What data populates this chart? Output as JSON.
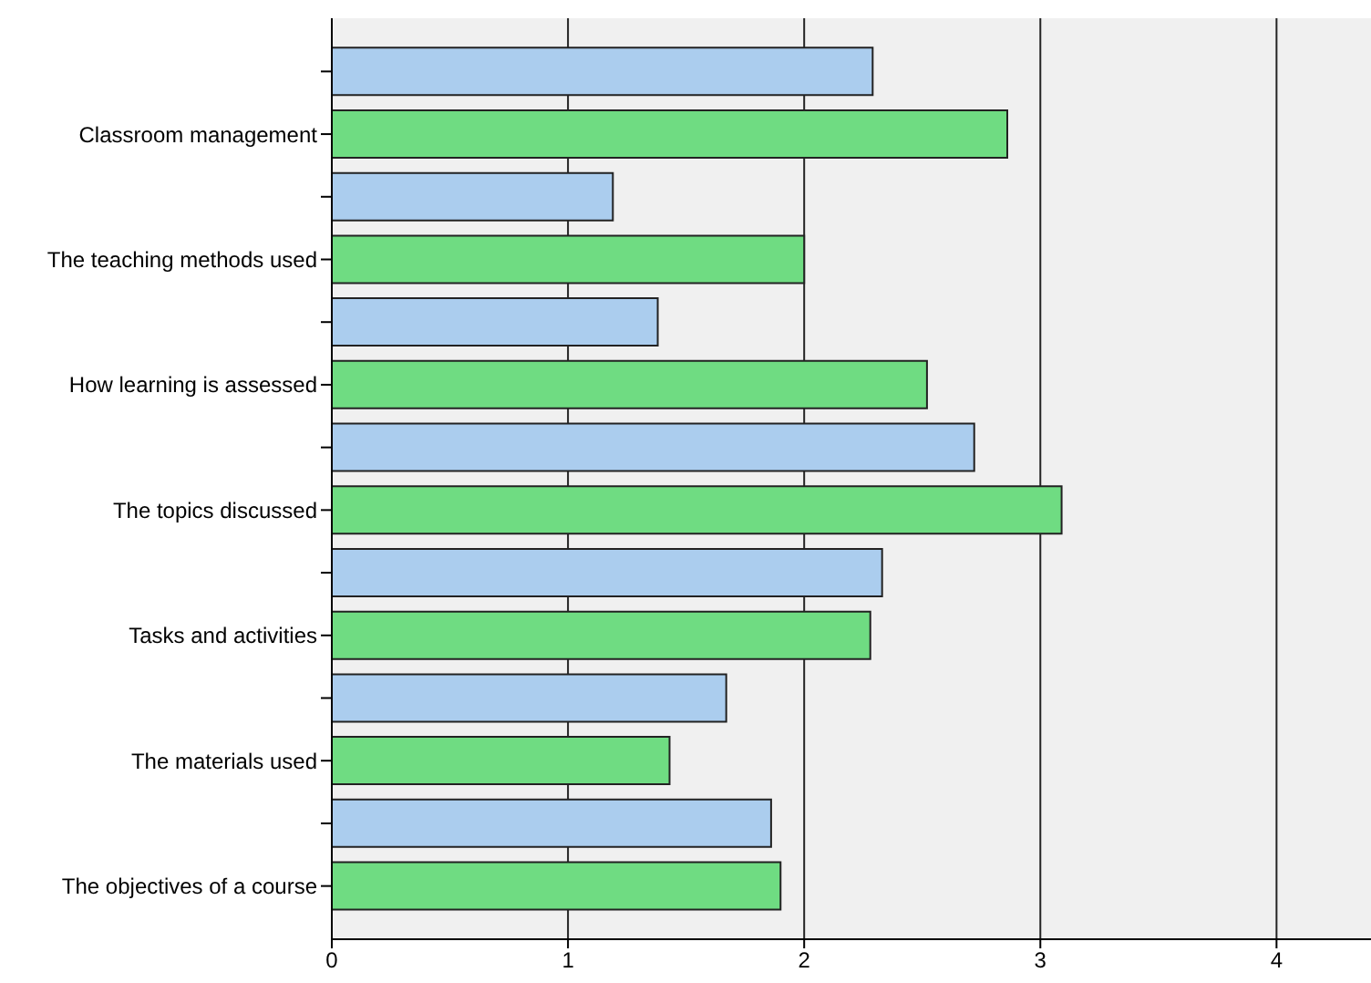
{
  "chart_data": {
    "type": "bar",
    "orientation": "horizontal",
    "categories": [
      null,
      "Classroom management",
      null,
      "The teaching methods used",
      null,
      "How learning is assessed",
      null,
      "The topics discussed",
      null,
      "Tasks and activities",
      null,
      "The materials used",
      null,
      "The objectives of a course"
    ],
    "values": [
      2.29,
      2.86,
      1.19,
      2.0,
      1.38,
      2.52,
      2.72,
      3.09,
      2.33,
      2.28,
      1.67,
      1.43,
      1.86,
      1.9
    ],
    "colors": [
      "#abcdee",
      "#6fdc82",
      "#abcdee",
      "#6fdc82",
      "#abcdee",
      "#6fdc82",
      "#abcdee",
      "#6fdc82",
      "#abcdee",
      "#6fdc82",
      "#abcdee",
      "#6fdc82",
      "#abcdee",
      "#6fdc82"
    ],
    "xlim": [
      0,
      4.4
    ],
    "xticks": [
      0,
      1,
      2,
      3,
      4
    ],
    "grid": "x",
    "legend": false
  }
}
